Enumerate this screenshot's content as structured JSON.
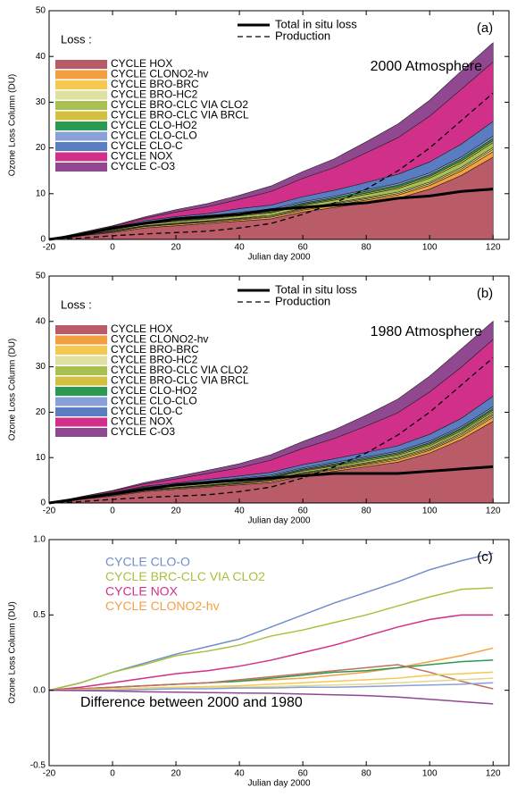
{
  "chart_data": [
    {
      "type": "area",
      "panel_label": "(a)",
      "loss_label": "Loss :",
      "subtitle": "2000 Atmosphere",
      "xlabel": "Julian day 2000",
      "ylabel": "Ozone Loss Column (DU)",
      "xlim": [
        -20,
        125
      ],
      "xticks": [
        -20,
        0,
        20,
        40,
        60,
        80,
        100,
        120
      ],
      "ylim": [
        0,
        50
      ],
      "yticks": [
        0,
        10,
        20,
        30,
        40,
        50
      ],
      "x": [
        -20,
        -10,
        0,
        10,
        20,
        30,
        40,
        50,
        60,
        70,
        80,
        90,
        100,
        110,
        120
      ],
      "series": [
        {
          "name": "CYCLE HOX",
          "color": "#b95c68",
          "values": [
            0,
            0.8,
            1.5,
            2.5,
            3,
            3.5,
            4,
            4.5,
            6,
            7,
            8,
            9,
            11,
            14,
            18
          ]
        },
        {
          "name": "CYCLE CLONO2-hv",
          "color": "#f5a040",
          "values": [
            0,
            0.1,
            0.2,
            0.3,
            0.3,
            0.3,
            0.3,
            0.4,
            0.4,
            0.5,
            0.6,
            0.7,
            0.8,
            1,
            1.2
          ]
        },
        {
          "name": "CYCLE BRO-BRC",
          "color": "#f5c850",
          "values": [
            0,
            0.05,
            0.1,
            0.1,
            0.15,
            0.15,
            0.2,
            0.2,
            0.25,
            0.3,
            0.3,
            0.35,
            0.4,
            0.4,
            0.5
          ]
        },
        {
          "name": "CYCLE BRO-HC2",
          "color": "#e0e0a0",
          "values": [
            0,
            0.05,
            0.1,
            0.1,
            0.1,
            0.15,
            0.15,
            0.2,
            0.2,
            0.2,
            0.25,
            0.3,
            0.3,
            0.35,
            0.4
          ]
        },
        {
          "name": "CYCLE BRO-CLC VIA CLO2",
          "color": "#a8c050",
          "values": [
            0,
            0.1,
            0.2,
            0.3,
            0.4,
            0.4,
            0.5,
            0.5,
            0.6,
            0.6,
            0.7,
            0.8,
            0.9,
            1,
            1.1
          ]
        },
        {
          "name": "CYCLE BRO-CLC VIA BRCL",
          "color": "#d4c040",
          "values": [
            0,
            0.05,
            0.1,
            0.1,
            0.15,
            0.15,
            0.2,
            0.2,
            0.2,
            0.25,
            0.3,
            0.3,
            0.35,
            0.4,
            0.4
          ]
        },
        {
          "name": "CYCLE CLO-HO2",
          "color": "#2a9a50",
          "values": [
            0,
            0.05,
            0.1,
            0.2,
            0.2,
            0.2,
            0.3,
            0.3,
            0.3,
            0.3,
            0.4,
            0.4,
            0.4,
            0.5,
            0.5
          ]
        },
        {
          "name": "CYCLE CLO-CLO",
          "color": "#8aa0d8",
          "values": [
            0,
            0.05,
            0.1,
            0.2,
            0.2,
            0.2,
            0.3,
            0.3,
            0.3,
            0.3,
            0.3,
            0.4,
            0.4,
            0.4,
            0.5
          ]
        },
        {
          "name": "CYCLE CLO-C",
          "color": "#5a7cc0",
          "values": [
            0,
            0.1,
            0.2,
            0.3,
            0.5,
            0.6,
            0.8,
            0.9,
            1.1,
            1.3,
            1.6,
            2,
            2.4,
            2.8,
            3.2
          ]
        },
        {
          "name": "CYCLE NOX",
          "color": "#d0308a",
          "values": [
            0,
            0.1,
            0.3,
            0.5,
            1,
            1.5,
            2,
            3,
            4,
            5,
            6.5,
            8,
            10,
            12,
            13
          ]
        },
        {
          "name": "CYCLE C-O3",
          "color": "#904890",
          "values": [
            0,
            0.05,
            0.1,
            0.3,
            0.5,
            0.7,
            0.9,
            1.2,
            1.5,
            1.9,
            2.4,
            3,
            3.5,
            4,
            4.2
          ]
        }
      ],
      "lines": [
        {
          "name": "Total in situ loss",
          "color": "#000000",
          "dash": "solid",
          "values": [
            0,
            1,
            2.5,
            3.5,
            4.5,
            5,
            5.5,
            6.5,
            7,
            7.5,
            8,
            9,
            9.5,
            10.5,
            11
          ]
        },
        {
          "name": "Production",
          "color": "#000000",
          "dash": "dashed",
          "values": [
            0,
            0.3,
            0.8,
            1.2,
            1.5,
            1.8,
            2.5,
            3.5,
            5.5,
            8,
            11,
            15,
            20,
            26,
            32
          ]
        }
      ]
    },
    {
      "type": "area",
      "panel_label": "(b)",
      "loss_label": "Loss :",
      "subtitle": "1980 Atmosphere",
      "xlabel": "Julian day 2000",
      "ylabel": "Ozone Loss Column (DU)",
      "xlim": [
        -20,
        125
      ],
      "xticks": [
        -20,
        0,
        20,
        40,
        60,
        80,
        100,
        120
      ],
      "ylim": [
        0,
        50
      ],
      "yticks": [
        0,
        10,
        20,
        30,
        40,
        50
      ],
      "x": [
        -20,
        -10,
        0,
        10,
        20,
        30,
        40,
        50,
        60,
        70,
        80,
        90,
        100,
        110,
        120
      ],
      "series": [
        {
          "name": "CYCLE HOX",
          "color": "#b95c68",
          "values": [
            0,
            0.8,
            1.5,
            2.5,
            3,
            3.5,
            4,
            4.5,
            6,
            7,
            8,
            9,
            11,
            14,
            18
          ]
        },
        {
          "name": "CYCLE CLONO2-hv",
          "color": "#f5a040",
          "values": [
            0,
            0.1,
            0.15,
            0.2,
            0.2,
            0.2,
            0.25,
            0.3,
            0.3,
            0.35,
            0.4,
            0.5,
            0.6,
            0.7,
            0.9
          ]
        },
        {
          "name": "CYCLE BRO-BRC",
          "color": "#f5c850",
          "values": [
            0,
            0.05,
            0.1,
            0.1,
            0.1,
            0.15,
            0.15,
            0.2,
            0.2,
            0.2,
            0.25,
            0.3,
            0.3,
            0.35,
            0.4
          ]
        },
        {
          "name": "CYCLE BRO-HC2",
          "color": "#e0e0a0",
          "values": [
            0,
            0.05,
            0.1,
            0.1,
            0.1,
            0.1,
            0.15,
            0.15,
            0.15,
            0.2,
            0.2,
            0.25,
            0.25,
            0.3,
            0.3
          ]
        },
        {
          "name": "CYCLE BRO-CLC VIA CLO2",
          "color": "#a8c050",
          "values": [
            0,
            0.05,
            0.1,
            0.2,
            0.3,
            0.3,
            0.35,
            0.35,
            0.4,
            0.4,
            0.45,
            0.5,
            0.5,
            0.5,
            0.5
          ]
        },
        {
          "name": "CYCLE BRO-CLC VIA BRCL",
          "color": "#d4c040",
          "values": [
            0,
            0.05,
            0.1,
            0.1,
            0.1,
            0.15,
            0.15,
            0.15,
            0.2,
            0.2,
            0.25,
            0.25,
            0.3,
            0.3,
            0.35
          ]
        },
        {
          "name": "CYCLE CLO-HO2",
          "color": "#2a9a50",
          "values": [
            0,
            0.05,
            0.1,
            0.15,
            0.15,
            0.2,
            0.2,
            0.25,
            0.25,
            0.3,
            0.3,
            0.3,
            0.35,
            0.35,
            0.4
          ]
        },
        {
          "name": "CYCLE CLO-CLO",
          "color": "#8aa0d8",
          "values": [
            0,
            0.05,
            0.1,
            0.15,
            0.15,
            0.2,
            0.2,
            0.25,
            0.25,
            0.3,
            0.3,
            0.3,
            0.35,
            0.35,
            0.4
          ]
        },
        {
          "name": "CYCLE CLO-C",
          "color": "#5a7cc0",
          "values": [
            0,
            0.05,
            0.1,
            0.2,
            0.3,
            0.4,
            0.5,
            0.6,
            0.7,
            0.8,
            1,
            1.2,
            1.5,
            1.8,
            2.3
          ]
        },
        {
          "name": "CYCLE NOX",
          "color": "#d0308a",
          "values": [
            0,
            0.1,
            0.3,
            0.5,
            0.9,
            1.3,
            1.8,
            2.7,
            3.6,
            4.5,
            5.8,
            7.3,
            9.3,
            11.3,
            12.5
          ]
        },
        {
          "name": "CYCLE C-O3",
          "color": "#904890",
          "values": [
            0,
            0.05,
            0.1,
            0.3,
            0.5,
            0.7,
            0.9,
            1.2,
            1.5,
            1.9,
            2.4,
            3,
            3.5,
            4,
            4
          ]
        }
      ],
      "lines": [
        {
          "name": "Total in situ loss",
          "color": "#000000",
          "dash": "solid",
          "values": [
            0,
            1,
            2,
            3,
            4,
            4.5,
            5,
            5.5,
            6,
            6.5,
            6.5,
            6.5,
            7,
            7.5,
            8
          ]
        },
        {
          "name": "Production",
          "color": "#000000",
          "dash": "dashed",
          "values": [
            0,
            0.3,
            0.8,
            1.2,
            1.5,
            1.8,
            2.5,
            3.5,
            5.5,
            8,
            11,
            15,
            20,
            26,
            32
          ]
        }
      ]
    },
    {
      "type": "line",
      "panel_label": "(c)",
      "annotation": "Difference between 2000 and 1980",
      "xlabel": "Julian day 2000",
      "ylabel": "Ozone Loss Column (DU)",
      "xlim": [
        -20,
        125
      ],
      "xticks": [
        -20,
        0,
        20,
        40,
        60,
        80,
        100,
        120
      ],
      "ylim": [
        -0.5,
        1
      ],
      "yticks": [
        -0.5,
        {
          "value": 0,
          "label": "0.0"
        },
        0.5,
        {
          "value": 1,
          "label": "1.0"
        }
      ],
      "x": [
        -20,
        -10,
        0,
        10,
        20,
        30,
        40,
        50,
        60,
        70,
        80,
        90,
        100,
        110,
        120
      ],
      "series": [
        {
          "name": "CYCLE CLO-O",
          "color": "#6f8fc8",
          "values": [
            0,
            0.05,
            0.12,
            0.18,
            0.24,
            0.29,
            0.34,
            0.42,
            0.5,
            0.58,
            0.65,
            0.72,
            0.8,
            0.86,
            0.91
          ]
        },
        {
          "name": "CYCLE BRC-CLC VIA CLO2",
          "color": "#a8c040",
          "values": [
            0,
            0.05,
            0.12,
            0.17,
            0.23,
            0.26,
            0.3,
            0.36,
            0.4,
            0.45,
            0.5,
            0.56,
            0.62,
            0.67,
            0.68
          ]
        },
        {
          "name": "CYCLE NOX",
          "color": "#d0308a",
          "values": [
            0,
            0.02,
            0.05,
            0.08,
            0.11,
            0.13,
            0.16,
            0.2,
            0.25,
            0.3,
            0.36,
            0.42,
            0.47,
            0.5,
            0.5
          ]
        },
        {
          "name": "CYCLE CLONO2-hv",
          "color": "#f5a040",
          "values": [
            0,
            0.01,
            0.02,
            0.03,
            0.04,
            0.05,
            0.06,
            0.07,
            0.08,
            0.1,
            0.12,
            0.15,
            0.19,
            0.23,
            0.28
          ]
        },
        {
          "color": "#2a9a50",
          "values": [
            0,
            0.01,
            0.02,
            0.03,
            0.04,
            0.05,
            0.06,
            0.08,
            0.1,
            0.12,
            0.13,
            0.15,
            0.17,
            0.19,
            0.2
          ]
        },
        {
          "color": "#c07060",
          "values": [
            0,
            0.01,
            0.02,
            0.03,
            0.04,
            0.05,
            0.07,
            0.09,
            0.11,
            0.13,
            0.15,
            0.17,
            0.12,
            0.06,
            0.01
          ]
        },
        {
          "color": "#f5c850",
          "values": [
            0,
            0.005,
            0.01,
            0.015,
            0.02,
            0.025,
            0.03,
            0.04,
            0.05,
            0.06,
            0.07,
            0.08,
            0.1,
            0.11,
            0.12
          ]
        },
        {
          "color": "#e0d890",
          "values": [
            0,
            0,
            0.005,
            0.01,
            0.015,
            0.02,
            0.02,
            0.025,
            0.03,
            0.035,
            0.04,
            0.05,
            0.06,
            0.07,
            0.08
          ]
        },
        {
          "color": "#8aa0d8",
          "values": [
            0,
            0,
            0,
            0.005,
            0.01,
            0.01,
            0.015,
            0.015,
            0.02,
            0.02,
            0.025,
            0.03,
            0.035,
            0.04,
            0.05
          ]
        },
        {
          "color": "#904890",
          "values": [
            0,
            -0.002,
            -0.005,
            -0.01,
            -0.012,
            -0.015,
            -0.018,
            -0.02,
            -0.025,
            -0.03,
            -0.035,
            -0.045,
            -0.06,
            -0.075,
            -0.09
          ]
        }
      ]
    }
  ]
}
